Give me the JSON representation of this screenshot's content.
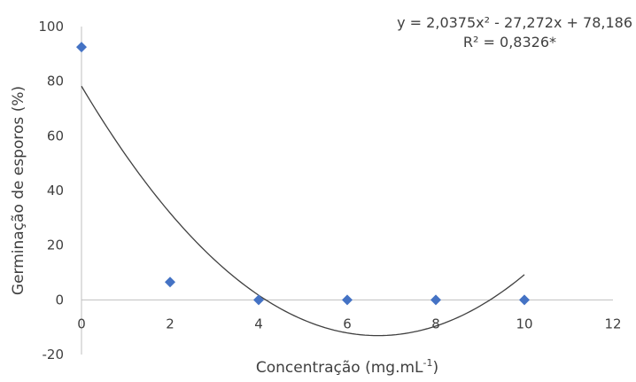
{
  "chart_data": {
    "type": "scatter",
    "xlabel": "Concentração (mg.mL",
    "xlabel_sup": "-1",
    "xlabel_end": ")",
    "ylabel": "Germinação de esporos (%)",
    "xlim": [
      0,
      12
    ],
    "ylim": [
      -20,
      100
    ],
    "x_ticks": [
      "0",
      "2",
      "4",
      "6",
      "8",
      "10",
      "12"
    ],
    "y_ticks": [
      "-20",
      "0",
      "20",
      "40",
      "60",
      "80",
      "100"
    ],
    "series": [
      {
        "marker": "diamond",
        "color": "#4472C4",
        "points": [
          {
            "x": 0,
            "y": 92.5
          },
          {
            "x": 2,
            "y": 6.5
          },
          {
            "x": 4,
            "y": 0
          },
          {
            "x": 6,
            "y": 0
          },
          {
            "x": 8,
            "y": 0
          },
          {
            "x": 10,
            "y": 0
          }
        ]
      }
    ],
    "trendline": {
      "kind": "polynomial-2",
      "coefficients": {
        "a": 2.0375,
        "b": -27.272,
        "c": 78.186
      },
      "x_range": [
        0,
        10
      ],
      "color": "#404040"
    },
    "annotations": {
      "equation": "y = 2,0375x² - 27,272x + 78,186",
      "r2": "R² = 0,8326*"
    },
    "grid": false
  }
}
